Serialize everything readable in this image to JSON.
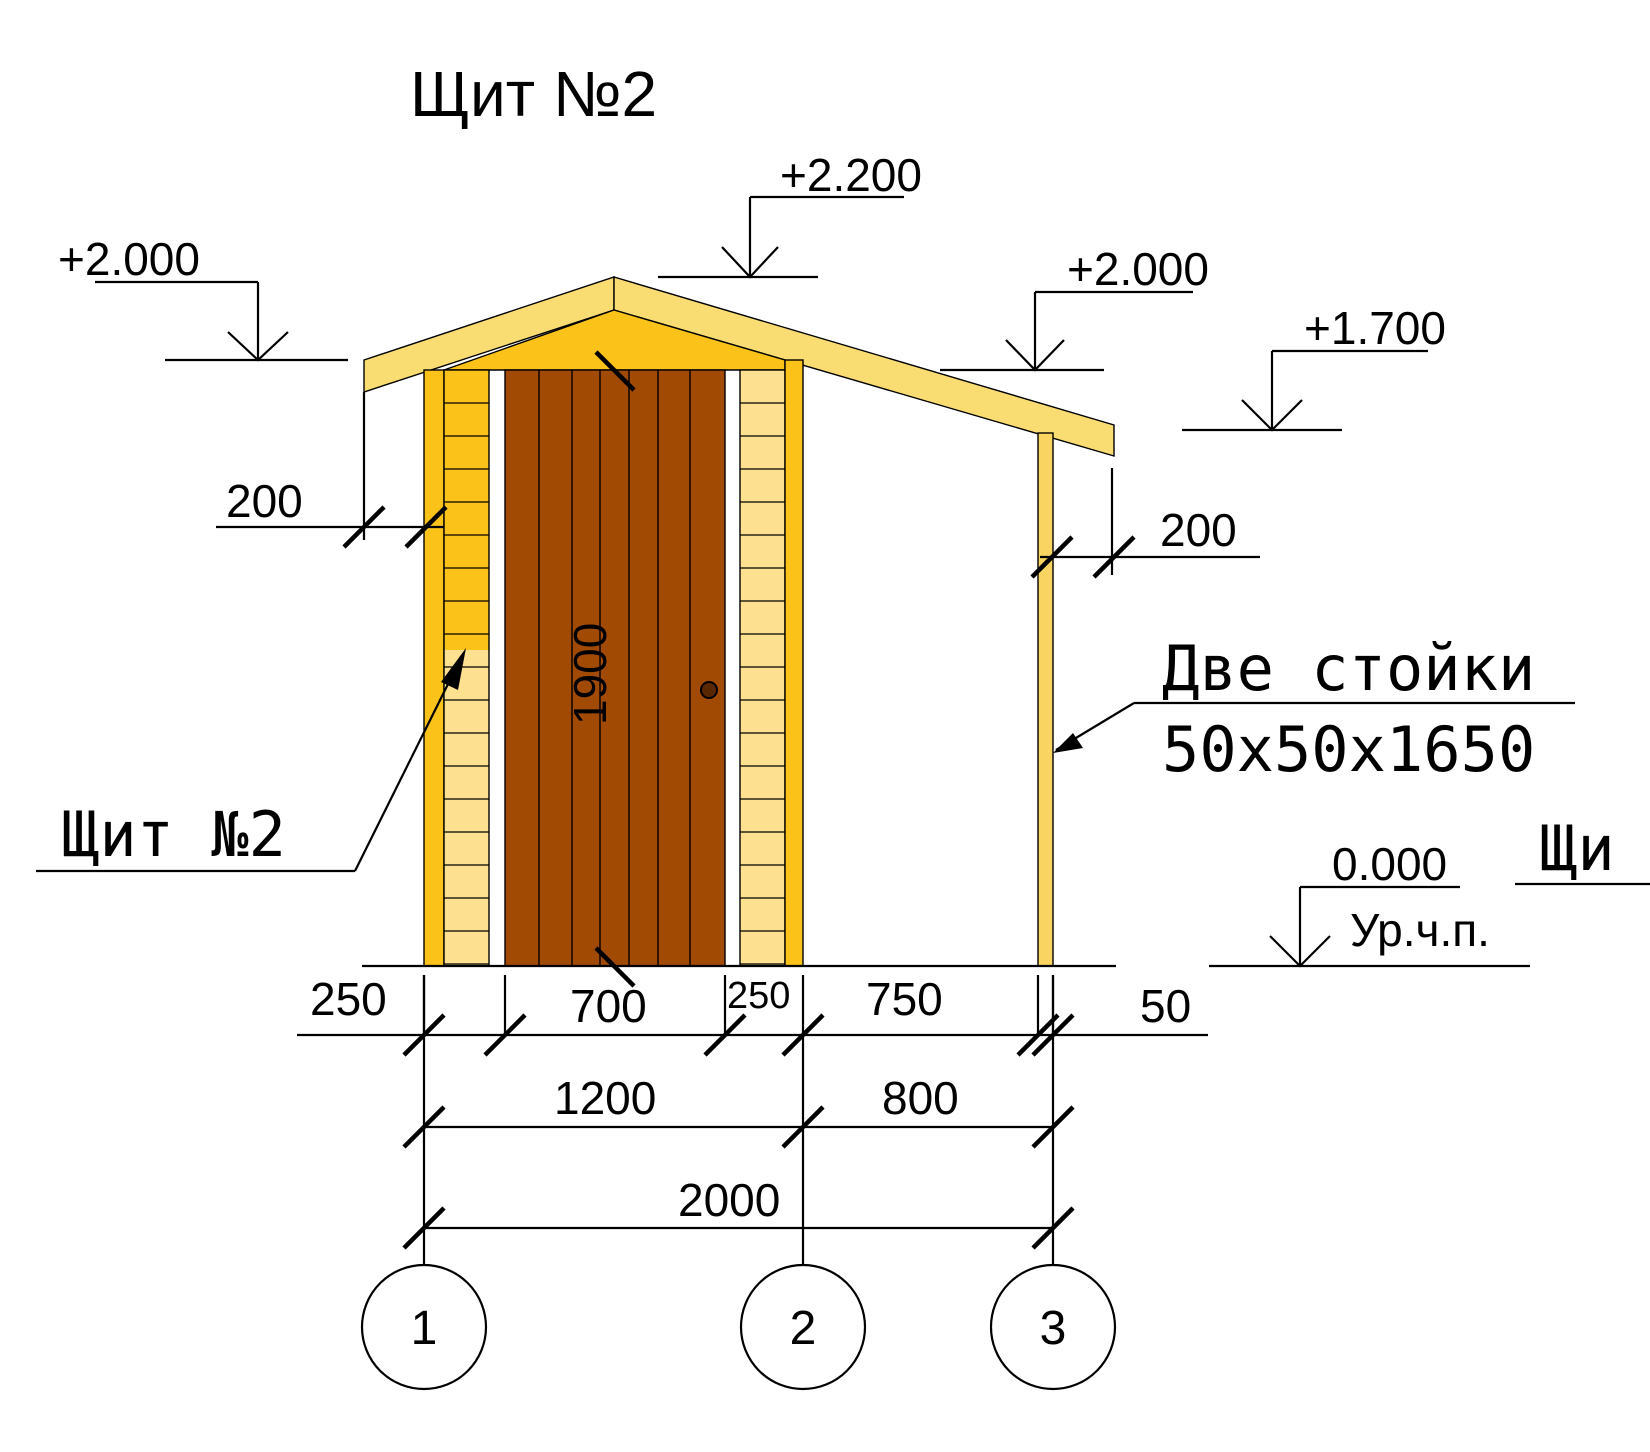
{
  "title": "Щит №2",
  "levels": {
    "ridge": "+2.200",
    "eave_left": "+2.000",
    "eave_right": "+2.000",
    "post_top": "+1.700",
    "floor": "0.000",
    "floor_label": "Ур.ч.п."
  },
  "dimensions": {
    "overhang_left": "200",
    "overhang_right": "200",
    "door_height": "1900",
    "seg_1": "250",
    "seg_2": "700",
    "seg_3": "250",
    "seg_4": "750",
    "seg_5": "50",
    "span_1": "1200",
    "span_2": "800",
    "total": "2000"
  },
  "callouts": {
    "panel_label": "Щит №2",
    "posts_line1": "Две стойки",
    "posts_line2": "50х50х1650",
    "cut_label": "Щи"
  },
  "axes": [
    "1",
    "2",
    "3"
  ],
  "colors": {
    "roof": "#f9dc72",
    "panel_dark": "#fbc21a",
    "panel_light": "#fde190",
    "door": "#a14a04",
    "post": "#f9d461"
  }
}
